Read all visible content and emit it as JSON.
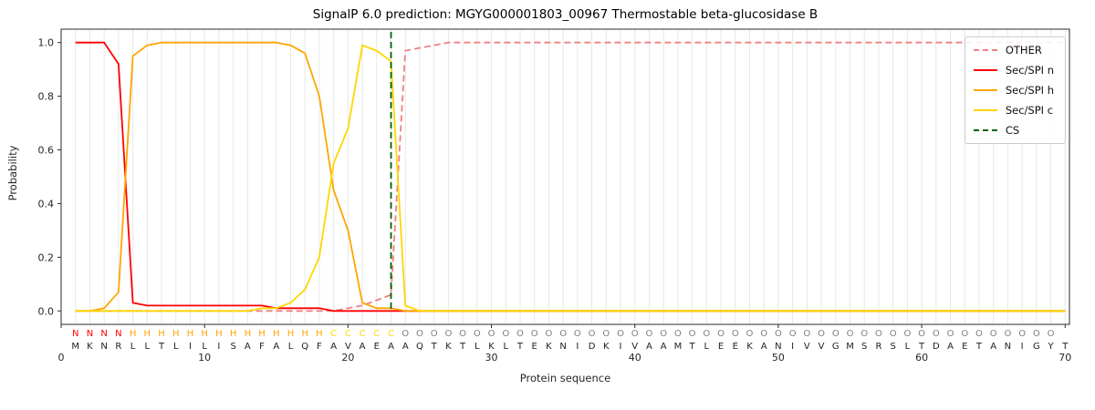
{
  "chart_data": {
    "type": "line",
    "title": "SignalP 6.0 prediction: MGYG000001803_00967 Thermostable beta-glucosidase B",
    "xlabel": "Protein sequence",
    "ylabel": "Probability",
    "xlim": [
      0,
      70.3
    ],
    "ylim": [
      -0.05,
      1.05
    ],
    "x_ticks": [
      0,
      10,
      20,
      30,
      40,
      50,
      60,
      70
    ],
    "y_ticks": [
      "0.0",
      "0.2",
      "0.4",
      "0.6",
      "0.8",
      "1.0"
    ],
    "grid": "vertical gridline at every residue position",
    "legend_position": "upper right",
    "cs_position": 23,
    "sequence": "MKNRLLTLILISAFALQFAVAEAAQTKTLKLTEKNIDKIVAAMTLEEKANIVVGMSRSLTDAETANIGYT",
    "region_labels": "NNNNHHHHHHHHHHHHHHCCCCCOOOOOOOOOOOOOOOOOOOOOOOOOOOOOOOOOOOOOOOOOOOOOO",
    "region_colors": {
      "N": "#ff0000",
      "H": "#ffa500",
      "C": "#ffd700",
      "O": "#7f7f7f"
    },
    "colors": {
      "grid": "#e7e7e7",
      "spine": "#2b2b2b",
      "text": "#262626",
      "sequence_text": "#1f1f1f"
    },
    "x": [
      1,
      2,
      3,
      4,
      5,
      6,
      7,
      8,
      9,
      10,
      11,
      12,
      13,
      14,
      15,
      16,
      17,
      18,
      19,
      20,
      21,
      22,
      23,
      24,
      25,
      26,
      27,
      28,
      29,
      30,
      31,
      32,
      33,
      34,
      35,
      36,
      37,
      38,
      39,
      40,
      41,
      42,
      43,
      44,
      45,
      46,
      47,
      48,
      49,
      50,
      51,
      52,
      53,
      54,
      55,
      56,
      57,
      58,
      59,
      60,
      61,
      62,
      63,
      64,
      65,
      66,
      67,
      68,
      69,
      70
    ],
    "series": [
      {
        "name": "OTHER",
        "color": "#f08080",
        "dash": true,
        "values": [
          0,
          0,
          0,
          0,
          0,
          0,
          0,
          0,
          0,
          0,
          0,
          0,
          0,
          0,
          0,
          0,
          0,
          0,
          0,
          0.01,
          0.02,
          0.04,
          0.06,
          0.97,
          0.98,
          0.99,
          1,
          1,
          1,
          1,
          1,
          1,
          1,
          1,
          1,
          1,
          1,
          1,
          1,
          1,
          1,
          1,
          1,
          1,
          1,
          1,
          1,
          1,
          1,
          1,
          1,
          1,
          1,
          1,
          1,
          1,
          1,
          1,
          1,
          1,
          1,
          1,
          1,
          1,
          1,
          1,
          1,
          1,
          1,
          1
        ]
      },
      {
        "name": "Sec/SPI n",
        "color": "#ff0000",
        "dash": false,
        "values": [
          1,
          1,
          1,
          0.92,
          0.03,
          0.02,
          0.02,
          0.02,
          0.02,
          0.02,
          0.02,
          0.02,
          0.02,
          0.02,
          0.01,
          0.01,
          0.01,
          0.01,
          0,
          0,
          0,
          0,
          0,
          0,
          0,
          0,
          0,
          0,
          0,
          0,
          0,
          0,
          0,
          0,
          0,
          0,
          0,
          0,
          0,
          0,
          0,
          0,
          0,
          0,
          0,
          0,
          0,
          0,
          0,
          0,
          0,
          0,
          0,
          0,
          0,
          0,
          0,
          0,
          0,
          0,
          0,
          0,
          0,
          0,
          0,
          0,
          0,
          0,
          0,
          0
        ]
      },
      {
        "name": "Sec/SPI h",
        "color": "#ffa500",
        "dash": false,
        "values": [
          0,
          0,
          0.01,
          0.07,
          0.95,
          0.99,
          1,
          1,
          1,
          1,
          1,
          1,
          1,
          1,
          1,
          0.99,
          0.96,
          0.8,
          0.45,
          0.3,
          0.03,
          0.01,
          0.01,
          0,
          0,
          0,
          0,
          0,
          0,
          0,
          0,
          0,
          0,
          0,
          0,
          0,
          0,
          0,
          0,
          0,
          0,
          0,
          0,
          0,
          0,
          0,
          0,
          0,
          0,
          0,
          0,
          0,
          0,
          0,
          0,
          0,
          0,
          0,
          0,
          0,
          0,
          0,
          0,
          0,
          0,
          0,
          0,
          0,
          0,
          0
        ]
      },
      {
        "name": "Sec/SPI c",
        "color": "#ffd700",
        "dash": false,
        "values": [
          0,
          0,
          0,
          0,
          0,
          0,
          0,
          0,
          0,
          0,
          0,
          0,
          0,
          0.01,
          0.01,
          0.03,
          0.08,
          0.2,
          0.55,
          0.68,
          0.99,
          0.97,
          0.93,
          0.02,
          0,
          0,
          0,
          0,
          0,
          0,
          0,
          0,
          0,
          0,
          0,
          0,
          0,
          0,
          0,
          0,
          0,
          0,
          0,
          0,
          0,
          0,
          0,
          0,
          0,
          0,
          0,
          0,
          0,
          0,
          0,
          0,
          0,
          0,
          0,
          0,
          0,
          0,
          0,
          0,
          0,
          0,
          0,
          0,
          0,
          0
        ]
      },
      {
        "name": "CS",
        "color": "#006400",
        "dash": true,
        "type": "vline",
        "x": 23
      }
    ]
  }
}
